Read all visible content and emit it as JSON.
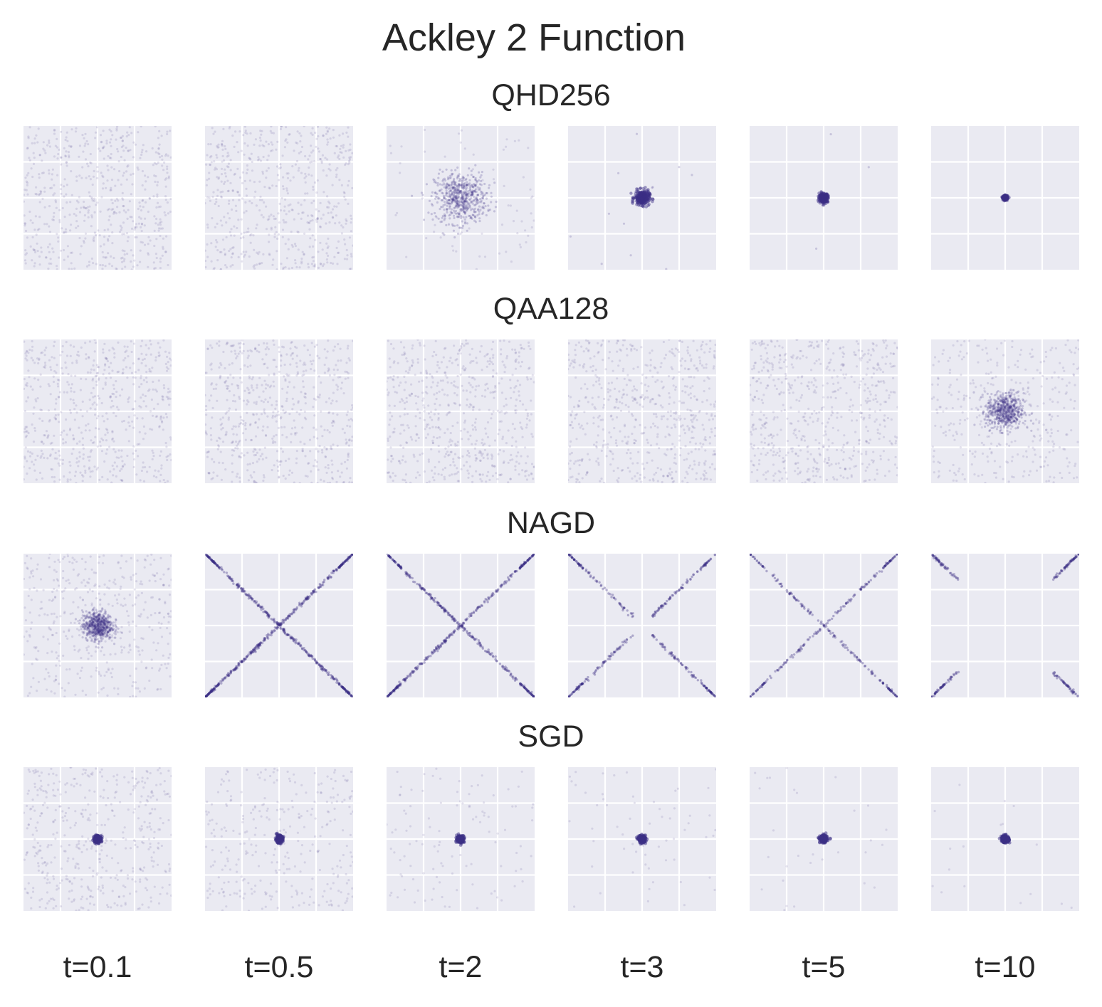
{
  "title": "Ackley 2 Function",
  "colors": {
    "point": "#3b2f85",
    "panel_bg": "#eaeaf2",
    "grid": "#ffffff"
  },
  "columns": [
    "t=0.1",
    "t=0.5",
    "t=2",
    "t=3",
    "t=5",
    "t=10"
  ],
  "rows": [
    {
      "name": "QHD256"
    },
    {
      "name": "QAA128"
    },
    {
      "name": "NAGD"
    },
    {
      "name": "SGD"
    }
  ],
  "chart_data": {
    "type": "scatter",
    "title": "Ackley 2 Function",
    "xlabel": "",
    "ylabel": "",
    "xlim": [
      -2,
      2
    ],
    "ylim": [
      -2,
      2
    ],
    "grid": true,
    "legend": "none",
    "panels": [
      [
        {
          "t": "t=0.1",
          "pattern": "uniform",
          "spread": 2.0,
          "cx": 0,
          "cy": 0
        },
        {
          "t": "t=0.5",
          "pattern": "uniform",
          "spread": 2.0,
          "cx": 0,
          "cy": 0
        },
        {
          "t": "t=2",
          "pattern": "cluster",
          "spread": 0.35,
          "cx": 0,
          "cy": 0,
          "background": 0.12
        },
        {
          "t": "t=3",
          "pattern": "tight",
          "spread": 0.1,
          "cx": 0,
          "cy": 0,
          "background": 0.02
        },
        {
          "t": "t=5",
          "pattern": "tight",
          "spread": 0.06,
          "cx": 0,
          "cy": 0,
          "background": 0.005
        },
        {
          "t": "t=10",
          "pattern": "tight",
          "spread": 0.03,
          "cx": 0,
          "cy": 0,
          "background": 0
        }
      ],
      [
        {
          "t": "t=0.1",
          "pattern": "uniform",
          "spread": 2.0,
          "cx": 0,
          "cy": 0
        },
        {
          "t": "t=0.5",
          "pattern": "uniform",
          "spread": 2.0,
          "cx": 0,
          "cy": 0
        },
        {
          "t": "t=2",
          "pattern": "uniform",
          "spread": 2.0,
          "cx": 0,
          "cy": 0
        },
        {
          "t": "t=3",
          "pattern": "uniform",
          "spread": 2.0,
          "cx": 0,
          "cy": 0
        },
        {
          "t": "t=5",
          "pattern": "uniform",
          "spread": 2.0,
          "cx": 0,
          "cy": 0
        },
        {
          "t": "t=10",
          "pattern": "cluster",
          "spread": 0.25,
          "cx": 0,
          "cy": 0,
          "background": 0.6
        }
      ],
      [
        {
          "t": "t=0.1",
          "pattern": "cluster",
          "spread": 0.2,
          "cx": 0,
          "cy": 0,
          "background": 0.7
        },
        {
          "t": "t=0.5",
          "pattern": "x",
          "gap": 0,
          "density": 1.0
        },
        {
          "t": "t=2",
          "pattern": "x",
          "gap": 0,
          "density": 0.8
        },
        {
          "t": "t=3",
          "pattern": "x",
          "gap": 0.25,
          "density": 0.5
        },
        {
          "t": "t=5",
          "pattern": "x",
          "gap": 0,
          "density": 0.45
        },
        {
          "t": "t=10",
          "pattern": "x",
          "gap": 1.3,
          "density": 0.3
        }
      ],
      [
        {
          "t": "t=0.1",
          "pattern": "dot",
          "spread": 0.05,
          "cx": 0,
          "cy": 0,
          "background": 0.75
        },
        {
          "t": "t=0.5",
          "pattern": "dot",
          "spread": 0.05,
          "cx": 0,
          "cy": 0,
          "background": 0.5
        },
        {
          "t": "t=2",
          "pattern": "dot",
          "spread": 0.05,
          "cx": 0,
          "cy": 0,
          "background": 0.18
        },
        {
          "t": "t=3",
          "pattern": "dot",
          "spread": 0.05,
          "cx": 0,
          "cy": 0,
          "background": 0.1
        },
        {
          "t": "t=5",
          "pattern": "dot",
          "spread": 0.05,
          "cx": 0,
          "cy": 0,
          "background": 0.05
        },
        {
          "t": "t=10",
          "pattern": "dot",
          "spread": 0.05,
          "cx": 0,
          "cy": 0,
          "background": 0.03
        }
      ]
    ]
  }
}
